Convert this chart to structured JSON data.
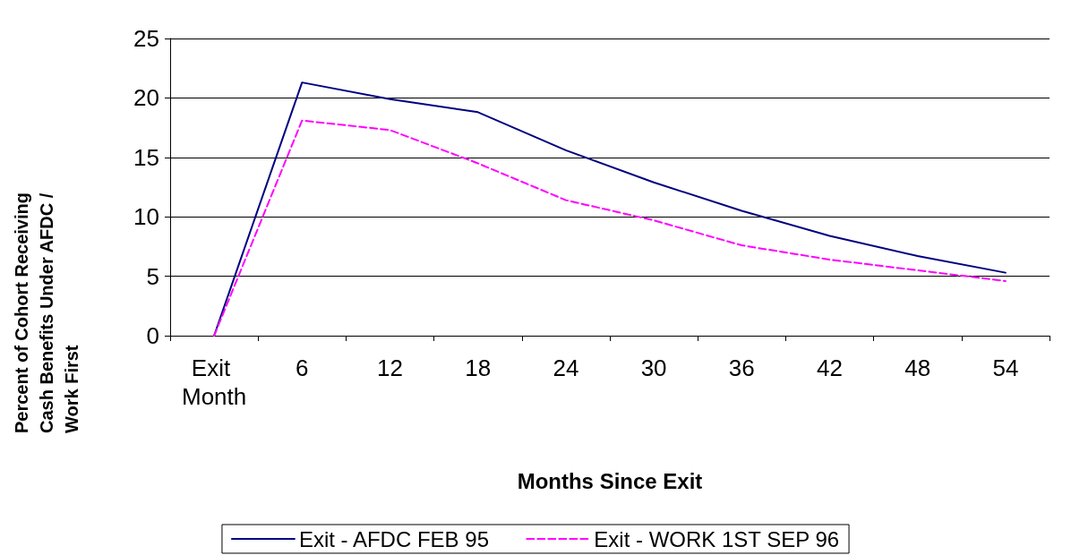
{
  "chart_data": {
    "type": "line",
    "xlabel": "Months Since Exit",
    "ylabel": "Percent of Cohort Receiving Cash Benefits Under AFDC / Work First",
    "categories": [
      "Exit Month",
      "6",
      "12",
      "18",
      "24",
      "30",
      "36",
      "42",
      "48",
      "54"
    ],
    "series": [
      {
        "name": "Exit - AFDC FEB 95",
        "color": "#000080",
        "line_style": "solid",
        "values": [
          0,
          21.3,
          19.9,
          18.8,
          15.6,
          12.9,
          10.5,
          8.4,
          6.7,
          5.3
        ]
      },
      {
        "name": "Exit - WORK 1ST SEP 96",
        "color": "#ff00ff",
        "line_style": "dashed",
        "values": [
          0,
          18.1,
          17.3,
          14.5,
          11.4,
          9.7,
          7.6,
          6.4,
          5.5,
          4.6
        ]
      }
    ],
    "ylim": [
      0,
      25
    ],
    "yticks": [
      0,
      5,
      10,
      15,
      20,
      25
    ],
    "grid": "y",
    "legend": "bottom",
    "marker": "none"
  }
}
